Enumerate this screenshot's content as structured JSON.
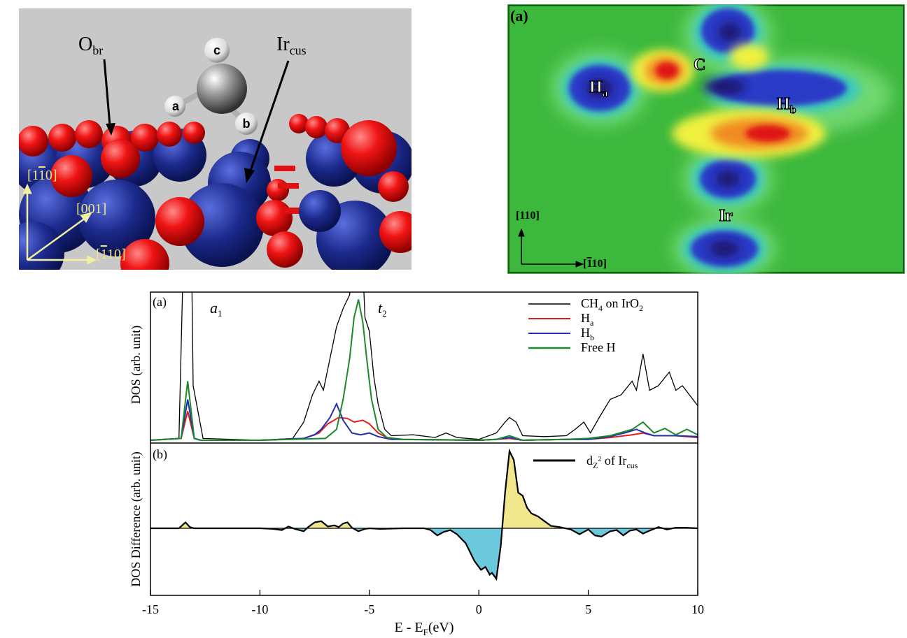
{
  "structure_panel": {
    "atoms": [
      "a",
      "b",
      "c"
    ],
    "label_obr_main": "O",
    "label_obr_sub": "br",
    "label_ircus_main": "Ir",
    "label_ircus_sub": "cus",
    "axis_up": "[1",
    "axis_up_bar": "1",
    "axis_up_end": "0]",
    "axis_diag": "[001]",
    "axis_right": "[",
    "axis_right_bar": "1",
    "axis_right_end": "10]"
  },
  "density_map": {
    "panel_label": "(a)",
    "label_C": "C",
    "label_Ha": "H",
    "label_Ha_sub": "a",
    "label_Hb": "H",
    "label_Hb_sub": "b",
    "label_Ir": "Ir",
    "axis_up": "[110]",
    "axis_right_pre": "[",
    "axis_right_bar": "1",
    "axis_right_post": "10]"
  },
  "dos_figure": {
    "panel_a_label": "(a)",
    "panel_b_label": "(b)",
    "peak_a1": "a",
    "peak_a1_sub": "1",
    "peak_t2": "t",
    "peak_t2_sub": "2",
    "ylabel_a": "DOS (arb. unit)",
    "ylabel_b": "DOS Difference (arb. unit)",
    "xlabel_pre": "E - E",
    "xlabel_sub": "F",
    "xlabel_post": "(eV)",
    "legend_a": [
      {
        "main": "CH",
        "sub": "4",
        "rest": " on IrO",
        "sub2": "2",
        "color": "#000000"
      },
      {
        "main": "H",
        "sub": "a",
        "rest": "",
        "sub2": "",
        "color": "#e02020"
      },
      {
        "main": "H",
        "sub": "b",
        "rest": "",
        "sub2": "",
        "color": "#2030b0"
      },
      {
        "main": "Free H",
        "sub": "",
        "rest": "",
        "sub2": "",
        "color": "#1a8a2a"
      }
    ],
    "legend_b": {
      "main": "d",
      "sub": "Z",
      "sup": "2",
      "rest": " of Ir",
      "sub2": "cus",
      "color": "#000000"
    },
    "positive_fill": "#f0e68c",
    "negative_fill": "#6cc8dc"
  },
  "chart_data": {
    "type": "line",
    "xlabel": "E - E_F(eV)",
    "xlim": [
      -15,
      10
    ],
    "xticks": [
      -15,
      -10,
      -5,
      0,
      5,
      10
    ],
    "panels": [
      {
        "panel": "(a)",
        "ylabel": "DOS (arb. unit)",
        "series": [
          {
            "name": "CH4 on IrO2",
            "color": "#000000",
            "x": [
              -15,
              -13.7,
              -13.35,
              -13.2,
              -13.05,
              -12.6,
              -10,
              -8.5,
              -8,
              -7.6,
              -7.3,
              -7.1,
              -6.8,
              -6.5,
              -6.2,
              -5.9,
              -5.6,
              -5.4,
              -5.2,
              -5.0,
              -4.8,
              -4.6,
              -4.3,
              -4,
              -3,
              -2,
              -1.5,
              -1,
              0,
              0.8,
              1.2,
              1.4,
              1.7,
              2,
              3,
              4,
              4.4,
              4.8,
              5.1,
              5.5,
              6,
              6.5,
              7.0,
              7.2,
              7.5,
              7.8,
              8.2,
              8.7,
              9,
              9.3,
              10
            ],
            "y": [
              0,
              0.02,
              3.5,
              3.5,
              0.6,
              0.02,
              0,
              0.02,
              0.2,
              0.5,
              0.65,
              0.55,
              0.9,
              1.25,
              1.45,
              1.6,
              2.5,
              2.5,
              1.35,
              1.2,
              0.7,
              0.4,
              0.12,
              0.05,
              0.06,
              0.03,
              0.08,
              0.03,
              0.01,
              0.08,
              0.2,
              0.25,
              0.2,
              0.05,
              0.04,
              0.05,
              0.12,
              0.2,
              0.08,
              0.25,
              0.45,
              0.5,
              0.65,
              0.55,
              0.95,
              0.55,
              0.6,
              0.75,
              0.55,
              0.6,
              0.38
            ]
          },
          {
            "name": "Ha",
            "color": "#e02020",
            "x": [
              -15,
              -13.6,
              -13.3,
              -13.0,
              -12.7,
              -10,
              -8,
              -7.3,
              -6.9,
              -6.4,
              -6.0,
              -5.7,
              -5.3,
              -5.0,
              -4.6,
              -4.2,
              -3.5,
              0,
              0.8,
              1.4,
              2,
              4,
              5,
              6,
              7,
              7.5,
              8,
              9,
              10
            ],
            "y": [
              0,
              0.02,
              0.32,
              0.02,
              0,
              0,
              0.02,
              0.08,
              0.18,
              0.25,
              0.24,
              0.2,
              0.22,
              0.18,
              0.08,
              0.03,
              0.01,
              0,
              0.01,
              0.02,
              0,
              0.01,
              0.01,
              0.03,
              0.06,
              0.08,
              0.05,
              0.05,
              0.03
            ]
          },
          {
            "name": "Hb",
            "color": "#2030b0",
            "x": [
              -15,
              -13.6,
              -13.3,
              -13.0,
              -12.7,
              -10,
              -8,
              -7.5,
              -7.2,
              -6.8,
              -6.5,
              -6.2,
              -5.8,
              -5.4,
              -5.0,
              -4.6,
              -4.0,
              0,
              0.8,
              1.4,
              2,
              4,
              5,
              6,
              6.8,
              7.2,
              7.6,
              8,
              9,
              10
            ],
            "y": [
              0,
              0.02,
              0.45,
              0.02,
              0,
              0,
              0.02,
              0.06,
              0.12,
              0.25,
              0.4,
              0.22,
              0.08,
              0.06,
              0.08,
              0.04,
              0.01,
              0,
              0.01,
              0.03,
              0,
              0.01,
              0.01,
              0.04,
              0.09,
              0.12,
              0.08,
              0.05,
              0.05,
              0.04
            ]
          },
          {
            "name": "Free H",
            "color": "#1a8a2a",
            "x": [
              -15,
              -13.6,
              -13.3,
              -13.0,
              -12.7,
              -10,
              -7,
              -6.5,
              -6.2,
              -5.9,
              -5.7,
              -5.5,
              -5.3,
              -5.1,
              -4.9,
              -4.6,
              -4.2,
              -3.5,
              0,
              0.8,
              1.4,
              2,
              4,
              5,
              6,
              7,
              7.5,
              8,
              8.5,
              9,
              9.5,
              10
            ],
            "y": [
              0,
              0.02,
              0.65,
              0.02,
              0,
              0,
              0.02,
              0.12,
              0.45,
              0.9,
              1.35,
              1.55,
              1.3,
              0.85,
              0.45,
              0.12,
              0.03,
              0.01,
              0,
              0.01,
              0.05,
              0,
              0.01,
              0.02,
              0.05,
              0.12,
              0.2,
              0.08,
              0.13,
              0.06,
              0.12,
              0.06
            ]
          }
        ]
      },
      {
        "panel": "(b)",
        "ylabel": "DOS Difference (arb. unit)",
        "series": [
          {
            "name": "dZ2 of Ircus",
            "color": "#000000",
            "fill_positive": "#f0e68c",
            "fill_negative": "#6cc8dc",
            "x": [
              -15,
              -13.7,
              -13.4,
              -13.2,
              -13.0,
              -10,
              -9.4,
              -9.0,
              -8.7,
              -8.4,
              -8.0,
              -7.8,
              -7.5,
              -7.2,
              -6.9,
              -6.6,
              -6.4,
              -6.2,
              -6.0,
              -5.8,
              -5.5,
              -5.2,
              -5.0,
              -4.5,
              -3.5,
              -2.5,
              -2.2,
              -1.9,
              -1.6,
              -1.3,
              -1.0,
              -0.6,
              -0.2,
              0.1,
              0.3,
              0.5,
              0.6,
              0.8,
              1.0,
              1.2,
              1.4,
              1.6,
              1.8,
              2.0,
              2.2,
              2.4,
              2.7,
              3.0,
              3.3,
              3.7,
              4.2,
              4.6,
              5.0,
              5.3,
              5.6,
              6.0,
              6.3,
              6.6,
              6.9,
              7.2,
              7.5,
              7.8,
              8.2,
              8.6,
              9.0,
              9.4,
              10
            ],
            "y": [
              0,
              0,
              0.1,
              0.02,
              0,
              0,
              -0.01,
              -0.03,
              0.03,
              -0.01,
              -0.05,
              0.02,
              0.1,
              0.12,
              0.03,
              0.05,
              0.02,
              0.08,
              0.1,
              0.01,
              -0.05,
              -0.01,
              0,
              -0.01,
              0,
              0,
              -0.03,
              -0.12,
              -0.06,
              -0.03,
              -0.1,
              -0.25,
              -0.55,
              -0.7,
              -0.65,
              -0.78,
              -0.75,
              -0.85,
              -0.3,
              0.6,
              1.3,
              1.15,
              0.6,
              0.55,
              0.35,
              0.25,
              0.2,
              0.12,
              0.04,
              0.02,
              -0.02,
              -0.1,
              -0.02,
              -0.12,
              -0.14,
              -0.05,
              -0.03,
              -0.12,
              -0.04,
              -0.02,
              -0.09,
              -0.04,
              0.02,
              -0.02,
              0.01,
              0.01,
              0
            ]
          }
        ]
      }
    ]
  }
}
